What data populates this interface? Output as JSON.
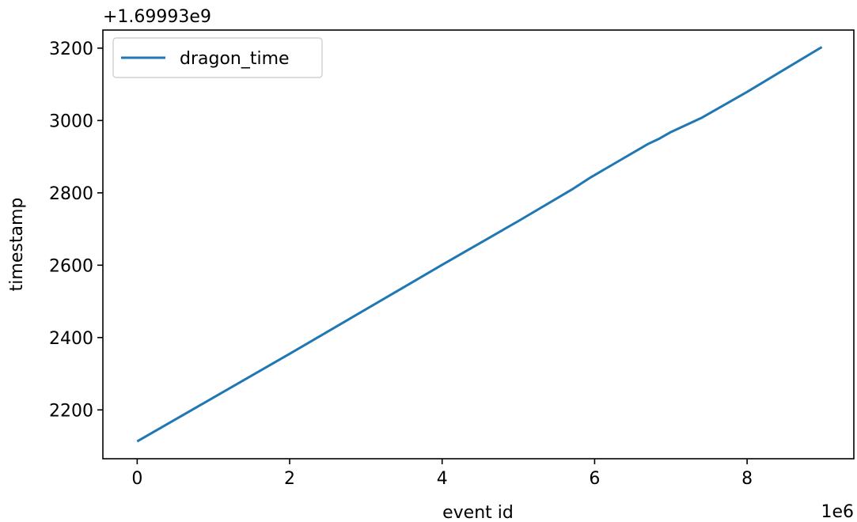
{
  "chart_data": {
    "type": "line",
    "xlabel": "event id",
    "ylabel": "timestamp",
    "x_offset_label": "1e6",
    "y_offset_label": "+1.69993e9",
    "xlim": [
      -0.45,
      9.4
    ],
    "ylim": [
      2065,
      3250
    ],
    "x_ticks": [
      0,
      2,
      4,
      6,
      8
    ],
    "x_tick_labels": [
      "0",
      "2",
      "4",
      "6",
      "8"
    ],
    "y_ticks": [
      2200,
      2400,
      2600,
      2800,
      3000,
      3200
    ],
    "y_tick_labels": [
      "2200",
      "2400",
      "2600",
      "2800",
      "3000",
      "3200"
    ],
    "grid": false,
    "legend_position": "upper-left",
    "series": [
      {
        "name": "dragon_time",
        "color": "#1f77b4",
        "x": [
          0.0,
          1.0,
          2.0,
          3.0,
          4.0,
          5.0,
          5.7,
          5.95,
          6.3,
          6.7,
          6.85,
          7.0,
          7.4,
          8.0,
          8.98
        ],
        "y": [
          2113,
          2234,
          2355,
          2478,
          2601,
          2722,
          2809,
          2843,
          2886,
          2935,
          2950,
          2968,
          3007,
          3079,
          3203
        ]
      }
    ]
  }
}
